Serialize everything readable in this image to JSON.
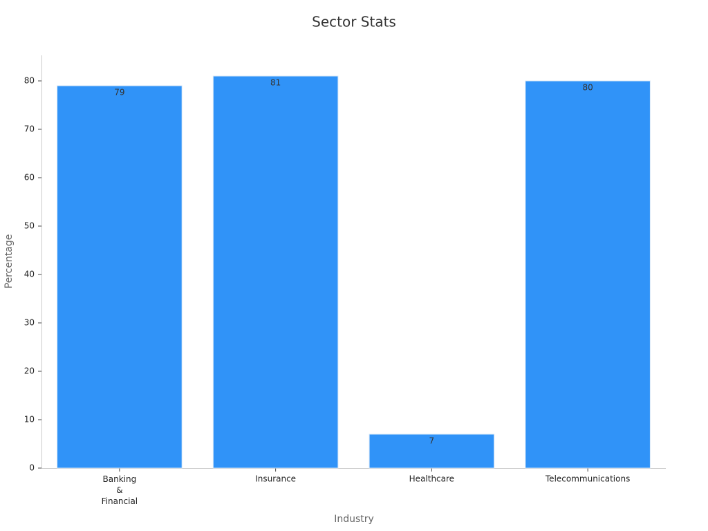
{
  "chart_data": {
    "type": "bar",
    "title": "Sector Stats",
    "x_label": "Industry",
    "y_label": "Percentage",
    "categories": [
      "Banking & Financial",
      "Insurance",
      "Healthcare",
      "Telecommunications"
    ],
    "values": [
      79,
      81,
      7,
      80
    ],
    "color": "#3093f8",
    "ylim": [
      0,
      85
    ],
    "yticks": [
      0,
      10,
      20,
      30,
      40,
      50,
      60,
      70,
      80
    ],
    "grid": false
  }
}
